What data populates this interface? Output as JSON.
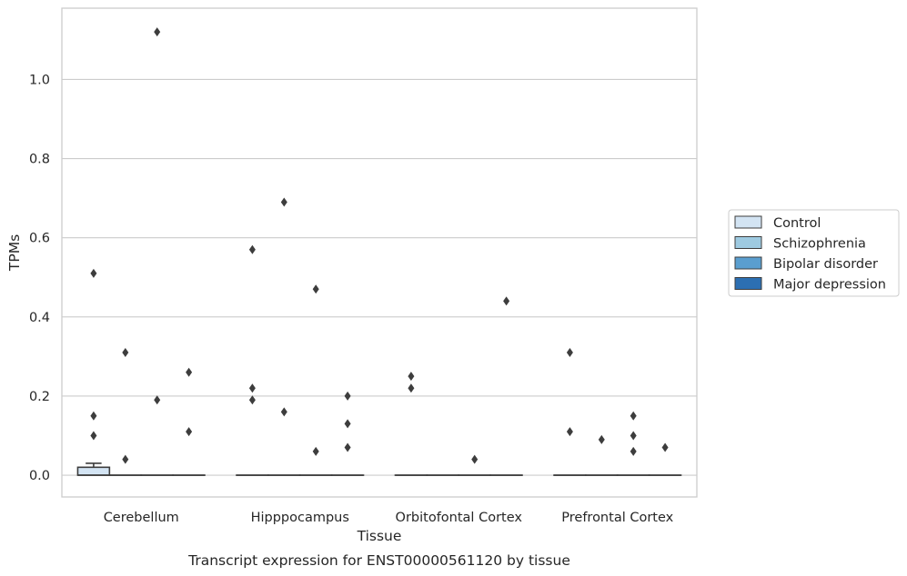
{
  "chart_data": {
    "type": "box",
    "title": "",
    "caption": "Transcript expression for ENST00000561120 by tissue",
    "xlabel": "Tissue",
    "ylabel": "TPMs",
    "ylim": [
      -0.055,
      1.18
    ],
    "yticks": [
      "0.0",
      "0.2",
      "0.4",
      "0.6",
      "0.8",
      "1.0"
    ],
    "grid": "horizontal",
    "legend_position": "right",
    "categories": [
      "Cerebellum",
      "Hipppocampus",
      "Orbitofontal Cortex",
      "Prefrontal Cortex"
    ],
    "series": [
      {
        "name": "Control",
        "color": "#d3e4f3",
        "boxes": [
          {
            "q1": 0.0,
            "median": 0.0,
            "q3": 0.02,
            "whisker_low": 0.0,
            "whisker_high": 0.03,
            "outliers": [
              0.1,
              0.15,
              0.51
            ]
          },
          {
            "q1": 0.0,
            "median": 0.0,
            "q3": 0.0,
            "whisker_low": 0.0,
            "whisker_high": 0.0,
            "outliers": [
              0.19,
              0.22,
              0.57
            ]
          },
          {
            "q1": 0.0,
            "median": 0.0,
            "q3": 0.0,
            "whisker_low": 0.0,
            "whisker_high": 0.0,
            "outliers": [
              0.22,
              0.25
            ]
          },
          {
            "q1": 0.0,
            "median": 0.0,
            "q3": 0.0,
            "whisker_low": 0.0,
            "whisker_high": 0.0,
            "outliers": [
              0.11,
              0.31
            ]
          }
        ]
      },
      {
        "name": "Schizophrenia",
        "color": "#9ecae1",
        "boxes": [
          {
            "q1": 0.0,
            "median": 0.0,
            "q3": 0.0,
            "whisker_low": 0.0,
            "whisker_high": 0.0,
            "outliers": [
              0.04,
              0.31
            ]
          },
          {
            "q1": 0.0,
            "median": 0.0,
            "q3": 0.0,
            "whisker_low": 0.0,
            "whisker_high": 0.0,
            "outliers": [
              0.16,
              0.69
            ]
          },
          {
            "q1": 0.0,
            "median": 0.0,
            "q3": 0.0,
            "whisker_low": 0.0,
            "whisker_high": 0.0,
            "outliers": []
          },
          {
            "q1": 0.0,
            "median": 0.0,
            "q3": 0.0,
            "whisker_low": 0.0,
            "whisker_high": 0.0,
            "outliers": [
              0.09
            ]
          }
        ]
      },
      {
        "name": "Bipolar disorder",
        "color": "#5a9ecf",
        "boxes": [
          {
            "q1": 0.0,
            "median": 0.0,
            "q3": 0.0,
            "whisker_low": 0.0,
            "whisker_high": 0.0,
            "outliers": [
              0.19,
              1.12
            ]
          },
          {
            "q1": 0.0,
            "median": 0.0,
            "q3": 0.0,
            "whisker_low": 0.0,
            "whisker_high": 0.0,
            "outliers": [
              0.06,
              0.47
            ]
          },
          {
            "q1": 0.0,
            "median": 0.0,
            "q3": 0.0,
            "whisker_low": 0.0,
            "whisker_high": 0.0,
            "outliers": [
              0.04
            ]
          },
          {
            "q1": 0.0,
            "median": 0.0,
            "q3": 0.0,
            "whisker_low": 0.0,
            "whisker_high": 0.0,
            "outliers": [
              0.06,
              0.1,
              0.15
            ]
          }
        ]
      },
      {
        "name": "Major depression",
        "color": "#2c6fb2",
        "boxes": [
          {
            "q1": 0.0,
            "median": 0.0,
            "q3": 0.0,
            "whisker_low": 0.0,
            "whisker_high": 0.0,
            "outliers": [
              0.11,
              0.26
            ]
          },
          {
            "q1": 0.0,
            "median": 0.0,
            "q3": 0.0,
            "whisker_low": 0.0,
            "whisker_high": 0.0,
            "outliers": [
              0.07,
              0.13,
              0.2
            ]
          },
          {
            "q1": 0.0,
            "median": 0.0,
            "q3": 0.0,
            "whisker_low": 0.0,
            "whisker_high": 0.0,
            "outliers": [
              0.44
            ]
          },
          {
            "q1": 0.0,
            "median": 0.0,
            "q3": 0.0,
            "whisker_low": 0.0,
            "whisker_high": 0.0,
            "outliers": [
              0.07
            ]
          }
        ]
      }
    ]
  }
}
